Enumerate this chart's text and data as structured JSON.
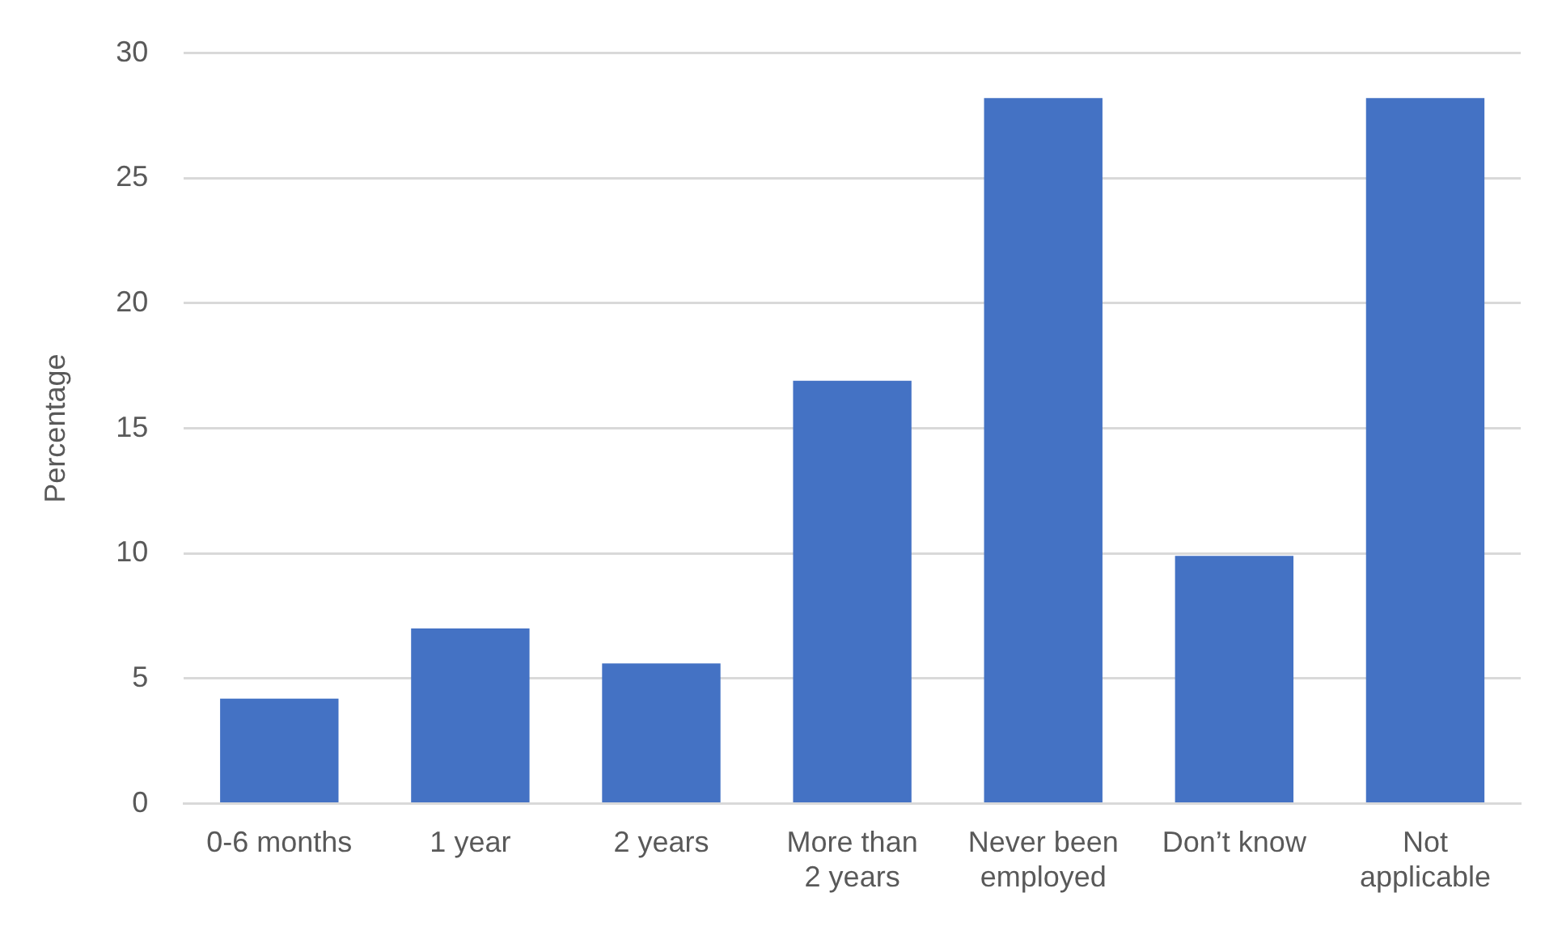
{
  "chart_data": {
    "type": "bar",
    "ylabel": "Percentage",
    "categories": [
      "0-6 months",
      "1 year",
      "2 years",
      "More than 2 years",
      "Never been employed",
      "Don’t know",
      "Not applicable"
    ],
    "values": [
      4.2,
      7.0,
      5.6,
      16.9,
      28.2,
      9.9,
      28.2
    ],
    "color": "#4472c4",
    "ylim": [
      0,
      30
    ],
    "yticks": [
      0,
      5,
      10,
      15,
      20,
      25,
      30
    ],
    "grid": "y",
    "legend": false
  }
}
